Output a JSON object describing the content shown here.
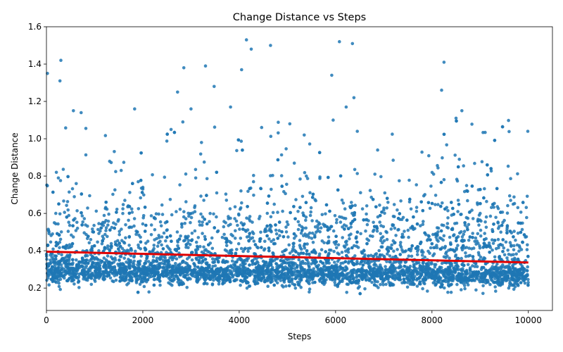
{
  "chart_data": {
    "type": "scatter",
    "title": "Change Distance vs Steps",
    "xlabel": "Steps",
    "ylabel": "Change Distance",
    "xlim": [
      0,
      10500
    ],
    "ylim": [
      0.08,
      1.6
    ],
    "xticks": [
      0,
      2000,
      4000,
      6000,
      8000,
      10000
    ],
    "xtick_labels": [
      "0",
      "2000",
      "4000",
      "6000",
      "8000",
      "10000"
    ],
    "yticks": [
      0.2,
      0.4,
      0.6,
      0.8,
      1.0,
      1.2,
      1.4,
      1.6
    ],
    "ytick_labels": [
      "0.2",
      "0.4",
      "0.6",
      "0.8",
      "1.0",
      "1.2",
      "1.4",
      "1.6"
    ],
    "grid": false,
    "legend": false,
    "point_color": "#1f77b4",
    "trend_color": "#e00000",
    "trend": {
      "x": [
        0,
        10000
      ],
      "y": [
        0.395,
        0.337
      ]
    },
    "points": {
      "x_range": [
        0,
        10000
      ],
      "count": 5000,
      "dense_band": [
        0.22,
        0.33
      ],
      "notable_outliers": [
        [
          20,
          1.35
        ],
        [
          300,
          1.42
        ],
        [
          280,
          1.31
        ],
        [
          560,
          1.15
        ],
        [
          720,
          1.14
        ],
        [
          1830,
          1.16
        ],
        [
          2720,
          1.25
        ],
        [
          2850,
          1.38
        ],
        [
          2830,
          1.09
        ],
        [
          3000,
          1.16
        ],
        [
          3300,
          1.39
        ],
        [
          3480,
          1.28
        ],
        [
          3820,
          1.17
        ],
        [
          4050,
          1.37
        ],
        [
          4150,
          1.53
        ],
        [
          4250,
          1.48
        ],
        [
          4650,
          1.5
        ],
        [
          5050,
          1.08
        ],
        [
          5350,
          1.02
        ],
        [
          5950,
          1.1
        ],
        [
          5920,
          1.34
        ],
        [
          6080,
          1.52
        ],
        [
          6220,
          1.17
        ],
        [
          6350,
          1.51
        ],
        [
          6380,
          1.22
        ],
        [
          6450,
          1.04
        ],
        [
          8200,
          1.26
        ],
        [
          8250,
          1.41
        ],
        [
          8500,
          1.11
        ],
        [
          8620,
          1.15
        ]
      ]
    }
  }
}
